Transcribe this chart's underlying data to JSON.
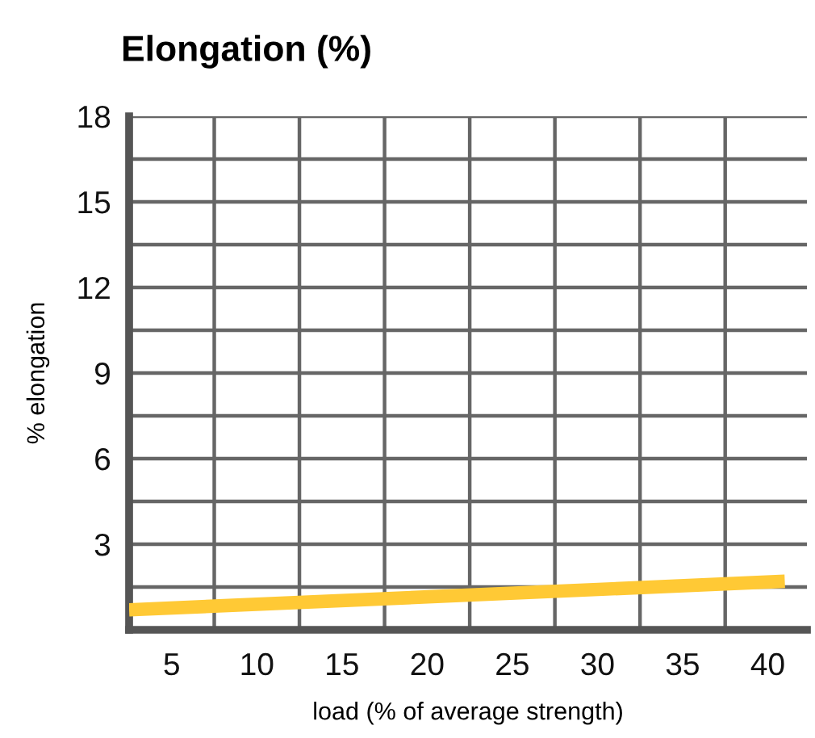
{
  "chart_data": {
    "type": "line",
    "title": "Elongation (%)",
    "xlabel": "load (% of average strength)",
    "ylabel": "% elongation",
    "x": [
      2.5,
      41
    ],
    "series": [
      {
        "color": "#ffc935",
        "values": [
          0.7,
          1.7
        ]
      }
    ],
    "xlim": [
      2.5,
      42.3
    ],
    "ylim": [
      0,
      18
    ],
    "xticks": [
      5,
      10,
      15,
      20,
      25,
      30,
      35,
      40,
      {
        "value": 7.5,
        "label": null
      },
      {
        "value": 12.5,
        "label": null
      },
      {
        "value": 17.5,
        "label": null
      },
      {
        "value": 22.5,
        "label": null
      },
      {
        "value": 27.5,
        "label": null
      },
      {
        "value": 32.5,
        "label": null
      },
      {
        "value": 37.5,
        "label": null
      }
    ],
    "yticks": [
      3,
      6,
      9,
      12,
      15,
      18,
      {
        "value": 1.5,
        "label": null
      },
      {
        "value": 4.5,
        "label": null
      },
      {
        "value": 7.5,
        "label": null
      },
      {
        "value": 10.5,
        "label": null
      },
      {
        "value": 13.5,
        "label": null
      },
      {
        "value": 16.5,
        "label": null
      }
    ],
    "grid": true,
    "line_style": "solid",
    "marker": "none"
  }
}
